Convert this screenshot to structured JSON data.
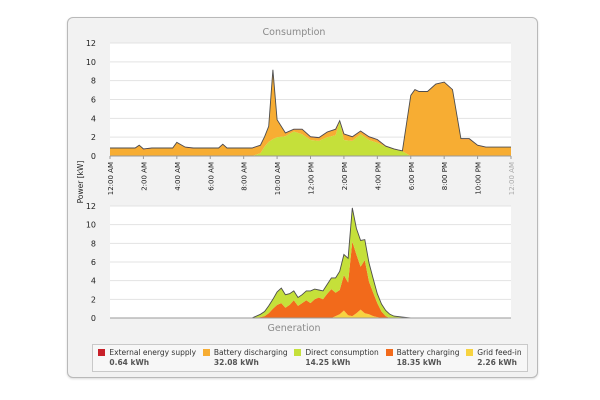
{
  "chart_data": [
    {
      "type": "area",
      "title": "Consumption",
      "ylabel": "Power [kW]",
      "ylim": [
        0,
        12
      ],
      "yticks": [
        0,
        2,
        4,
        6,
        8,
        10,
        12
      ],
      "xlim": [
        0,
        24
      ],
      "xticks": [
        {
          "x": 0,
          "label": "12:00 AM"
        },
        {
          "x": 2,
          "label": "2:00 AM"
        },
        {
          "x": 4,
          "label": "4:00 AM"
        },
        {
          "x": 6,
          "label": "6:00 AM"
        },
        {
          "x": 8,
          "label": "8:00 AM"
        },
        {
          "x": 10,
          "label": "10:00 AM"
        },
        {
          "x": 12,
          "label": "12:00 PM"
        },
        {
          "x": 14,
          "label": "2:00 PM"
        },
        {
          "x": 16,
          "label": "4:00 PM"
        },
        {
          "x": 18,
          "label": "6:00 PM"
        },
        {
          "x": 20,
          "label": "8:00 PM"
        },
        {
          "x": 22,
          "label": "10:00 PM"
        },
        {
          "x": 24,
          "label": "12:00 AM"
        }
      ],
      "x": [
        0,
        0.5,
        1,
        1.5,
        1.75,
        2,
        2.5,
        3,
        3.5,
        3.75,
        4,
        4.5,
        5,
        5.5,
        6,
        6.5,
        6.75,
        7,
        7.5,
        8,
        8.5,
        9,
        9.25,
        9.5,
        9.75,
        10,
        10.5,
        11,
        11.5,
        12,
        12.5,
        13,
        13.5,
        13.75,
        14,
        14.5,
        15,
        15.5,
        16,
        16.5,
        17,
        17.25,
        17.5,
        18,
        18.25,
        18.5,
        19,
        19.5,
        20,
        20.5,
        21,
        21.25,
        21.5,
        22,
        22.5,
        23,
        23.5,
        24
      ],
      "series": [
        {
          "name": "Direct consumption",
          "color": "#c5e03a",
          "values": [
            0,
            0,
            0,
            0,
            0,
            0,
            0,
            0,
            0,
            0,
            0,
            0,
            0,
            0,
            0,
            0,
            0,
            0,
            0,
            0,
            0,
            0.3,
            1,
            1.5,
            1.8,
            2,
            2.1,
            2.6,
            2.3,
            1.7,
            1.6,
            2,
            2.2,
            3.7,
            1.7,
            1.6,
            2.3,
            1.7,
            1.4,
            1,
            0.7,
            0.6,
            0.5,
            0,
            0,
            0,
            0,
            0,
            0,
            0,
            0,
            0,
            0,
            0,
            0,
            0,
            0,
            0
          ]
        },
        {
          "name": "Battery discharging",
          "color": "#f7ad33",
          "values": [
            0.8,
            0.8,
            0.8,
            0.8,
            1.1,
            0.7,
            0.8,
            0.8,
            0.8,
            0.8,
            1.4,
            0.9,
            0.8,
            0.8,
            0.8,
            0.8,
            1.2,
            0.8,
            0.8,
            0.8,
            0.8,
            0.8,
            1,
            1.6,
            7.3,
            1.8,
            0.3,
            0.2,
            0.5,
            0.3,
            0.3,
            0.5,
            0.6,
            0,
            0.6,
            0.4,
            0.3,
            0.3,
            0.3,
            0,
            0,
            0,
            0,
            6.4,
            7,
            6.8,
            6.8,
            7.6,
            7.8,
            7,
            1.8,
            1.8,
            1.8,
            1.1,
            0.9,
            0.9,
            0.9,
            0.9
          ]
        },
        {
          "name": "External energy supply",
          "color": "#c8202a",
          "values": [
            0.05,
            0.05,
            0.05,
            0.05,
            0.05,
            0.05,
            0.05,
            0.05,
            0.05,
            0.05,
            0.05,
            0.05,
            0.05,
            0.05,
            0.05,
            0.05,
            0.05,
            0.05,
            0.05,
            0.05,
            0.05,
            0.05,
            0.05,
            0.05,
            0.05,
            0.05,
            0.05,
            0.05,
            0.05,
            0.05,
            0.05,
            0.05,
            0.05,
            0.05,
            0.05,
            0.05,
            0.05,
            0.05,
            0.05,
            0.05,
            0.05,
            0.05,
            0.05,
            0.05,
            0.05,
            0.05,
            0.05,
            0.05,
            0.05,
            0.05,
            0.05,
            0.05,
            0.05,
            0.05,
            0.05,
            0.05,
            0.05,
            0.05
          ]
        }
      ]
    },
    {
      "type": "area",
      "title": "Generation",
      "ylim": [
        0,
        12
      ],
      "yticks": [
        0,
        2,
        4,
        6,
        8,
        10,
        12
      ],
      "xlim": [
        0,
        24
      ],
      "x": [
        0,
        2,
        4,
        6,
        7,
        7.5,
        8,
        8.5,
        9,
        9.25,
        9.5,
        9.75,
        10,
        10.25,
        10.5,
        10.75,
        11,
        11.25,
        11.5,
        11.75,
        12,
        12.25,
        12.5,
        12.75,
        13,
        13.25,
        13.5,
        13.75,
        14,
        14.25,
        14.5,
        14.75,
        15,
        15.25,
        15.5,
        15.75,
        16,
        16.25,
        16.5,
        16.75,
        17,
        17.5,
        18,
        20,
        24
      ],
      "series": [
        {
          "name": "Grid feed-in",
          "color": "#f7d340",
          "values": [
            0,
            0,
            0,
            0,
            0,
            0,
            0,
            0,
            0,
            0,
            0,
            0,
            0,
            0,
            0,
            0,
            0,
            0,
            0,
            0,
            0,
            0,
            0,
            0,
            0,
            0,
            0.2,
            0.4,
            0.8,
            0.3,
            0.2,
            0.5,
            0.9,
            0.5,
            0.4,
            0.2,
            0.1,
            0,
            0,
            0,
            0,
            0,
            0,
            0,
            0
          ]
        },
        {
          "name": "Battery charging",
          "color": "#f26a1b",
          "values": [
            0,
            0,
            0,
            0,
            0,
            0,
            0,
            0,
            0.1,
            0.2,
            0.5,
            1,
            1.4,
            1.6,
            1.1,
            1.4,
            1.9,
            1.3,
            1.6,
            1.9,
            1.6,
            2,
            2.2,
            2,
            2.6,
            3.1,
            2.5,
            2.6,
            3.8,
            3.5,
            8,
            6.3,
            4.6,
            5.7,
            3.5,
            2.5,
            1.5,
            0.7,
            0.2,
            0,
            0,
            0,
            0,
            0,
            0
          ]
        },
        {
          "name": "Direct consumption",
          "color": "#c5e03a",
          "values": [
            0,
            0,
            0,
            0,
            0,
            0,
            0,
            0,
            0.3,
            0.5,
            0.8,
            1,
            1.4,
            1.6,
            1.4,
            1.2,
            1,
            0.9,
            0.9,
            1,
            1.3,
            1.1,
            0.8,
            0.9,
            1,
            1.2,
            1.6,
            2,
            2.2,
            2.6,
            3.6,
            2.8,
            2.8,
            2.2,
            2,
            1.5,
            1,
            0.8,
            0.6,
            0.4,
            0.2,
            0.1,
            0,
            0,
            0
          ]
        }
      ]
    }
  ],
  "legend": [
    {
      "label": "External energy supply",
      "value": "0.64 kWh",
      "color": "#c8202a"
    },
    {
      "label": "Battery discharging",
      "value": "32.08 kWh",
      "color": "#f7ad33"
    },
    {
      "label": "Direct consumption",
      "value": "14.25 kWh",
      "color": "#c5e03a"
    },
    {
      "label": "Battery charging",
      "value": "18.35 kWh",
      "color": "#f26a1b"
    },
    {
      "label": "Grid feed-in",
      "value": "2.26 kWh",
      "color": "#f7d340"
    }
  ]
}
